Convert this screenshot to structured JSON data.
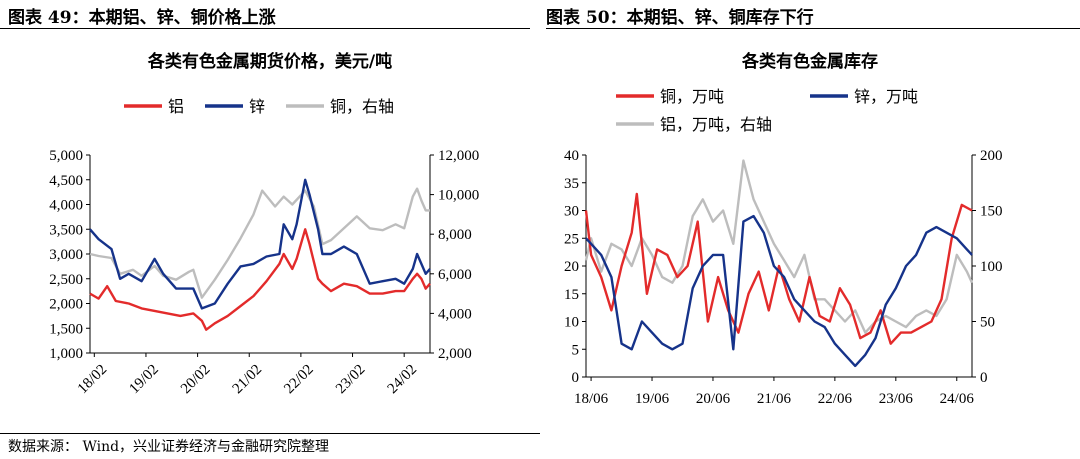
{
  "left": {
    "figure_title": "图表 49：本期铝、锌、铜价格上涨",
    "chart_title": "各类有色金属期货价格，美元/吨"
  },
  "right": {
    "figure_title": "图表 50：本期铝、锌、铜库存下行",
    "chart_title": "各类有色金属库存"
  },
  "source_note": "数据来源： Wind，兴业证券经济与金融研究院整理",
  "colors": {
    "red": "#E32B2B",
    "blue": "#16338A",
    "gray": "#BDBDBD"
  },
  "chart_data": [
    {
      "type": "line",
      "title": "各类有色金属期货价格，美元/吨",
      "x_ticks": [
        "18/02",
        "19/02",
        "20/02",
        "21/02",
        "22/02",
        "23/02",
        "24/02"
      ],
      "x_range": [
        "2018-01",
        "2024-08"
      ],
      "y_left": {
        "ticks": [
          "1,000",
          "1,500",
          "2,000",
          "2,500",
          "3,000",
          "3,500",
          "4,000",
          "4,500",
          "5,000"
        ],
        "range": [
          1000,
          5000
        ]
      },
      "y_right": {
        "ticks": [
          "2,000",
          "4,000",
          "6,000",
          "8,000",
          "10,000",
          "12,000"
        ],
        "range": [
          2000,
          12000
        ]
      },
      "legend": {
        "placement": "top",
        "entries": [
          "铝",
          "锌",
          "铜，右轴"
        ]
      },
      "series": [
        {
          "name": "铝",
          "axis": "left",
          "color": "red",
          "x": [
            "2018-01",
            "2018-03",
            "2018-05",
            "2018-07",
            "2018-10",
            "2019-01",
            "2019-04",
            "2019-07",
            "2019-10",
            "2020-01",
            "2020-03",
            "2020-04",
            "2020-06",
            "2020-09",
            "2020-12",
            "2021-03",
            "2021-06",
            "2021-09",
            "2021-10",
            "2021-12",
            "2022-01",
            "2022-03",
            "2022-04",
            "2022-06",
            "2022-07",
            "2022-09",
            "2022-12",
            "2023-03",
            "2023-06",
            "2023-09",
            "2023-12",
            "2024-02",
            "2024-04",
            "2024-05",
            "2024-06",
            "2024-07",
            "2024-08"
          ],
          "values": [
            2200,
            2100,
            2350,
            2050,
            2000,
            1900,
            1850,
            1800,
            1750,
            1800,
            1650,
            1470,
            1600,
            1750,
            1950,
            2150,
            2450,
            2800,
            3000,
            2700,
            2900,
            3500,
            3200,
            2500,
            2400,
            2250,
            2400,
            2350,
            2200,
            2200,
            2250,
            2250,
            2500,
            2600,
            2500,
            2300,
            2400
          ]
        },
        {
          "name": "锌",
          "axis": "left",
          "color": "blue",
          "x": [
            "2018-01",
            "2018-03",
            "2018-06",
            "2018-08",
            "2018-10",
            "2019-01",
            "2019-04",
            "2019-06",
            "2019-09",
            "2019-12",
            "2020-01",
            "2020-03",
            "2020-06",
            "2020-09",
            "2020-12",
            "2021-03",
            "2021-06",
            "2021-09",
            "2021-10",
            "2021-12",
            "2022-01",
            "2022-03",
            "2022-04",
            "2022-06",
            "2022-07",
            "2022-09",
            "2022-12",
            "2023-03",
            "2023-06",
            "2023-09",
            "2023-12",
            "2024-02",
            "2024-04",
            "2024-05",
            "2024-06",
            "2024-07",
            "2024-08"
          ],
          "values": [
            3500,
            3300,
            3100,
            2500,
            2600,
            2450,
            2900,
            2600,
            2300,
            2300,
            2300,
            1900,
            2000,
            2400,
            2750,
            2800,
            2950,
            3000,
            3600,
            3300,
            3600,
            4500,
            4200,
            3500,
            3000,
            3000,
            3150,
            3000,
            2400,
            2450,
            2500,
            2400,
            2700,
            3000,
            2800,
            2600,
            2700
          ]
        },
        {
          "name": "铜，右轴",
          "axis": "right",
          "color": "gray",
          "x": [
            "2018-01",
            "2018-03",
            "2018-06",
            "2018-08",
            "2018-11",
            "2019-01",
            "2019-04",
            "2019-06",
            "2019-09",
            "2019-12",
            "2020-01",
            "2020-03",
            "2020-06",
            "2020-09",
            "2020-12",
            "2021-03",
            "2021-05",
            "2021-08",
            "2021-10",
            "2021-12",
            "2022-03",
            "2022-05",
            "2022-07",
            "2022-09",
            "2022-12",
            "2023-03",
            "2023-06",
            "2023-09",
            "2023-12",
            "2024-02",
            "2024-04",
            "2024-05",
            "2024-06",
            "2024-07",
            "2024-08"
          ],
          "values": [
            7000,
            6900,
            6800,
            6000,
            6200,
            5900,
            6400,
            5900,
            5700,
            6100,
            6200,
            4800,
            5700,
            6700,
            7800,
            9000,
            10200,
            9400,
            9900,
            9500,
            10200,
            9400,
            7500,
            7700,
            8300,
            8900,
            8300,
            8200,
            8500,
            8300,
            9900,
            10300,
            9700,
            9200,
            9200
          ]
        }
      ]
    },
    {
      "type": "line",
      "title": "各类有色金属库存",
      "x_ticks": [
        "18/06",
        "19/06",
        "20/06",
        "21/06",
        "22/06",
        "23/06",
        "24/06"
      ],
      "x_range": [
        "2018-05",
        "2024-09"
      ],
      "y_left": {
        "ticks": [
          "0",
          "5",
          "10",
          "15",
          "20",
          "25",
          "30",
          "35",
          "40"
        ],
        "range": [
          0,
          40
        ]
      },
      "y_right": {
        "ticks": [
          "0",
          "50",
          "100",
          "150",
          "200"
        ],
        "range": [
          0,
          200
        ]
      },
      "legend": {
        "placement": "top",
        "entries": [
          "铜，万吨",
          "锌，万吨",
          "铝，万吨，右轴"
        ]
      },
      "series": [
        {
          "name": "铜，万吨",
          "axis": "left",
          "color": "red",
          "x": [
            "2018-05",
            "2018-06",
            "2018-08",
            "2018-10",
            "2018-12",
            "2019-02",
            "2019-03",
            "2019-05",
            "2019-07",
            "2019-09",
            "2019-11",
            "2020-01",
            "2020-03",
            "2020-05",
            "2020-07",
            "2020-09",
            "2020-11",
            "2021-01",
            "2021-03",
            "2021-05",
            "2021-07",
            "2021-09",
            "2021-11",
            "2022-01",
            "2022-03",
            "2022-05",
            "2022-07",
            "2022-09",
            "2022-11",
            "2023-01",
            "2023-03",
            "2023-05",
            "2023-07",
            "2023-09",
            "2023-11",
            "2024-01",
            "2024-03",
            "2024-05",
            "2024-07",
            "2024-09"
          ],
          "values": [
            30,
            22,
            18,
            12,
            20,
            26,
            33,
            15,
            23,
            22,
            18,
            20,
            28,
            10,
            18,
            12,
            8,
            15,
            19,
            12,
            20,
            14,
            10,
            18,
            11,
            10,
            16,
            13,
            7,
            8,
            12,
            6,
            8,
            8,
            9,
            10,
            14,
            25,
            31,
            30
          ]
        },
        {
          "name": "锌，万吨",
          "axis": "left",
          "color": "blue",
          "x": [
            "2018-05",
            "2018-06",
            "2018-08",
            "2018-10",
            "2018-12",
            "2019-02",
            "2019-04",
            "2019-06",
            "2019-08",
            "2019-10",
            "2019-12",
            "2020-02",
            "2020-04",
            "2020-06",
            "2020-08",
            "2020-10",
            "2020-12",
            "2021-02",
            "2021-04",
            "2021-06",
            "2021-08",
            "2021-10",
            "2021-12",
            "2022-02",
            "2022-04",
            "2022-06",
            "2022-08",
            "2022-10",
            "2022-12",
            "2023-02",
            "2023-04",
            "2023-06",
            "2023-08",
            "2023-10",
            "2023-12",
            "2024-02",
            "2024-04",
            "2024-06",
            "2024-08",
            "2024-09"
          ],
          "values": [
            25,
            24,
            22,
            18,
            6,
            5,
            10,
            8,
            6,
            5,
            6,
            16,
            20,
            22,
            22,
            5,
            28,
            29,
            26,
            20,
            18,
            14,
            12,
            10,
            9,
            6,
            4,
            2,
            4,
            7,
            13,
            16,
            20,
            22,
            26,
            27,
            26,
            25,
            23,
            22
          ]
        },
        {
          "name": "铝，万吨，右轴",
          "axis": "right",
          "color": "gray",
          "x": [
            "2018-05",
            "2018-06",
            "2018-08",
            "2018-10",
            "2018-12",
            "2019-02",
            "2019-04",
            "2019-06",
            "2019-08",
            "2019-10",
            "2019-12",
            "2020-02",
            "2020-04",
            "2020-06",
            "2020-08",
            "2020-10",
            "2020-12",
            "2021-02",
            "2021-04",
            "2021-06",
            "2021-08",
            "2021-10",
            "2021-12",
            "2022-02",
            "2022-04",
            "2022-06",
            "2022-08",
            "2022-10",
            "2022-12",
            "2023-02",
            "2023-04",
            "2023-06",
            "2023-08",
            "2023-10",
            "2023-12",
            "2024-02",
            "2024-04",
            "2024-06",
            "2024-08",
            "2024-09"
          ],
          "values": [
            105,
            125,
            95,
            120,
            115,
            100,
            125,
            110,
            90,
            85,
            100,
            145,
            160,
            140,
            150,
            120,
            195,
            160,
            140,
            120,
            105,
            90,
            110,
            70,
            70,
            60,
            50,
            60,
            40,
            50,
            55,
            50,
            45,
            55,
            60,
            55,
            70,
            110,
            95,
            85
          ]
        }
      ]
    }
  ]
}
